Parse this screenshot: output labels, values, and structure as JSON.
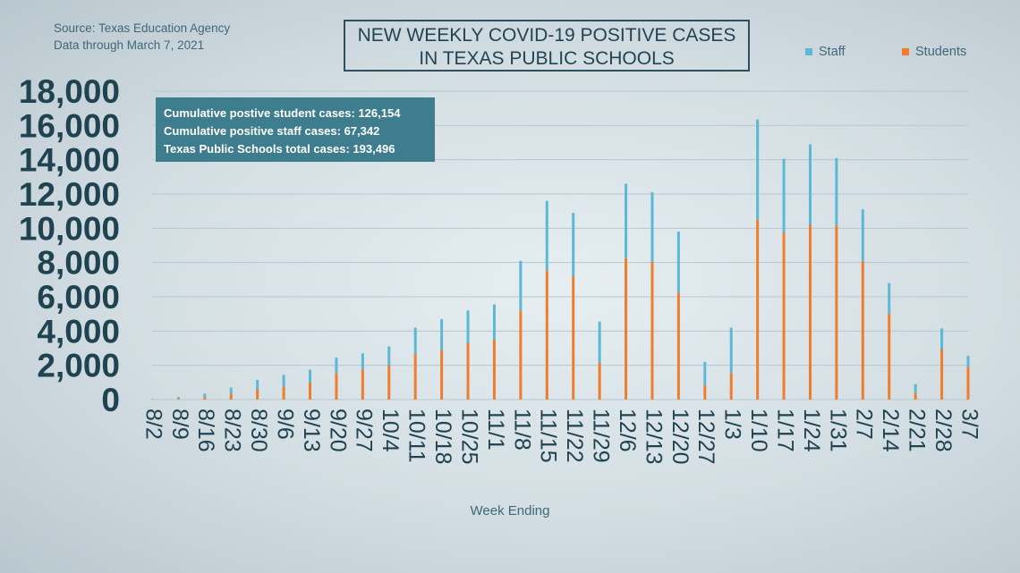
{
  "source": {
    "line1": "Source: Texas Education Agency",
    "line2": "Data through March 7, 2021"
  },
  "title": {
    "line1": "NEW WEEKLY COVID-19 POSITIVE CASES",
    "line2": "IN TEXAS PUBLIC SCHOOLS"
  },
  "info_box": {
    "line1": "Cumulative postive student cases: 126,154",
    "line2": "Cumulative positive staff cases: 67,342",
    "line3": "Texas Public Schools total cases: 193,496"
  },
  "colors": {
    "staff": "#5bb8d6",
    "students": "#ef7d2c",
    "axis_text": "#1f4350",
    "grid": "#b7c7ce"
  },
  "chart_data": {
    "type": "bar",
    "stacked": true,
    "xlabel": "Week Ending",
    "ylabel": "",
    "ylim": [
      0,
      18000
    ],
    "yticks": [
      0,
      2000,
      4000,
      6000,
      8000,
      10000,
      12000,
      14000,
      16000,
      18000
    ],
    "ytick_labels": [
      "0",
      "2,000",
      "4,000",
      "6,000",
      "8,000",
      "10,000",
      "12,000",
      "14,000",
      "16,000",
      "18,000"
    ],
    "grid": true,
    "legend_position": "top-right",
    "categories": [
      "8/2",
      "8/9",
      "8/16",
      "8/23",
      "8/30",
      "9/6",
      "9/13",
      "9/20",
      "9/27",
      "10/4",
      "10/11",
      "10/18",
      "10/25",
      "11/1",
      "11/8",
      "11/15",
      "11/22",
      "11/29",
      "12/6",
      "12/13",
      "12/20",
      "12/27",
      "1/3",
      "1/10",
      "1/17",
      "1/24",
      "1/31",
      "2/7",
      "2/14",
      "2/21",
      "2/28",
      "3/7"
    ],
    "series": [
      {
        "name": "Students",
        "values": [
          20,
          60,
          150,
          350,
          600,
          750,
          1000,
          1550,
          1750,
          2000,
          2650,
          2900,
          3300,
          3500,
          5200,
          7550,
          7200,
          2150,
          8250,
          8050,
          6250,
          850,
          1550,
          10500,
          9750,
          10200,
          10150,
          8100,
          5000,
          400,
          2950,
          1900
        ]
      },
      {
        "name": "Staff",
        "values": [
          10,
          90,
          200,
          350,
          550,
          700,
          750,
          900,
          950,
          1100,
          1550,
          1800,
          1900,
          2050,
          2900,
          4050,
          3700,
          2400,
          4350,
          4050,
          3550,
          1350,
          2650,
          5850,
          4300,
          4700,
          3950,
          3000,
          1800,
          500,
          1200,
          650
        ]
      }
    ]
  }
}
